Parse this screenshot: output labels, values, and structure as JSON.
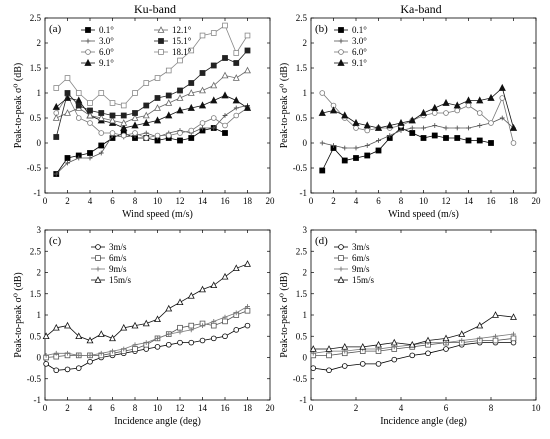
{
  "titles": {
    "left": "Ku-band",
    "right": "Ka-band"
  },
  "chart_data": [
    {
      "type": "line",
      "panel_label": "(a)",
      "xlabel": "Wind speed (m/s)",
      "ylabel": "Peak-to-peak σ⁰ (dB)",
      "xlim": [
        0,
        20
      ],
      "ylim": [
        -1,
        2.5
      ],
      "xticks": [
        "0",
        "2",
        "4",
        "6",
        "8",
        "10",
        "12",
        "14",
        "16",
        "18",
        "20"
      ],
      "yticks": [
        "-1",
        "-0.5",
        "0",
        "0.5",
        "1",
        "1.5",
        "2",
        "2.5"
      ],
      "legend_columns": 2,
      "series": [
        {
          "name": "0.1°",
          "marker": "filled-square",
          "x": [
            1,
            2,
            3,
            4,
            5,
            6,
            7,
            8,
            9,
            10,
            11,
            12,
            13,
            14,
            15,
            16
          ],
          "y": [
            -0.62,
            -0.3,
            -0.25,
            -0.2,
            -0.05,
            0.1,
            0.2,
            0.1,
            0.1,
            0.05,
            0.1,
            0.05,
            0.1,
            0.25,
            0.3,
            0.2
          ]
        },
        {
          "name": "3.0°",
          "marker": "plus",
          "x": [
            1,
            2,
            3,
            4,
            5,
            6,
            7,
            8,
            9,
            10,
            11,
            12,
            13,
            14,
            15,
            16,
            17,
            18
          ],
          "y": [
            -0.62,
            -0.4,
            -0.3,
            -0.3,
            -0.2,
            0.15,
            0.12,
            0.15,
            0.2,
            0.12,
            0.2,
            0.25,
            0.2,
            0.3,
            0.3,
            0.55,
            0.7,
            0.75
          ]
        },
        {
          "name": "6.0°",
          "marker": "open-circle",
          "x": [
            1,
            2,
            3,
            4,
            5,
            6,
            7,
            8,
            9,
            10,
            11,
            12,
            13,
            14,
            15,
            16,
            17,
            18
          ],
          "y": [
            0.6,
            0.95,
            0.5,
            0.4,
            0.2,
            0.2,
            0.15,
            0.2,
            0.1,
            0.15,
            0.15,
            0.2,
            0.25,
            0.4,
            0.5,
            0.35,
            0.55,
            0.7
          ]
        },
        {
          "name": "9.1°",
          "marker": "filled-triangle",
          "x": [
            1,
            2,
            3,
            4,
            5,
            6,
            7,
            8,
            9,
            10,
            11,
            12,
            13,
            14,
            15,
            16,
            17,
            18
          ],
          "y": [
            0.72,
            0.9,
            0.85,
            0.55,
            0.45,
            0.4,
            0.3,
            0.35,
            0.4,
            0.45,
            0.55,
            0.65,
            0.7,
            0.75,
            0.85,
            0.95,
            0.85,
            0.7
          ]
        },
        {
          "name": "12.1°",
          "marker": "open-triangle",
          "x": [
            1,
            2,
            3,
            4,
            5,
            6,
            7,
            8,
            9,
            10,
            11,
            12,
            13,
            14,
            15,
            16,
            17,
            18
          ],
          "y": [
            0.5,
            0.6,
            0.7,
            0.55,
            0.5,
            0.45,
            0.4,
            0.5,
            0.55,
            0.7,
            0.8,
            0.9,
            1.0,
            1.05,
            1.15,
            1.35,
            1.3,
            1.45
          ]
        },
        {
          "name": "15.1°",
          "marker": "filled-square",
          "x": [
            1,
            2,
            3,
            4,
            5,
            6,
            7,
            8,
            9,
            10,
            11,
            12,
            13,
            14,
            15,
            16,
            17,
            18
          ],
          "y": [
            0.12,
            1.0,
            0.75,
            0.65,
            0.6,
            0.55,
            0.55,
            0.6,
            0.75,
            0.9,
            0.95,
            1.05,
            1.2,
            1.4,
            1.55,
            1.7,
            1.6,
            1.85
          ]
        },
        {
          "name": "18.1°",
          "marker": "open-square",
          "x": [
            1,
            2,
            3,
            4,
            5,
            6,
            7,
            8,
            9,
            10,
            11,
            12,
            13,
            14,
            15,
            16,
            17,
            18
          ],
          "y": [
            1.1,
            1.3,
            1.0,
            0.8,
            1.0,
            0.8,
            0.75,
            1.0,
            1.2,
            1.3,
            1.45,
            1.65,
            1.85,
            2.15,
            2.2,
            2.35,
            1.8,
            2.15
          ]
        }
      ]
    },
    {
      "type": "line",
      "panel_label": "(b)",
      "xlabel": "Wind speed (m/s)",
      "ylabel": "Peak-to-peak σ⁰ (dB)",
      "xlim": [
        0,
        20
      ],
      "ylim": [
        -1,
        2.5
      ],
      "xticks": [
        "0",
        "2",
        "4",
        "6",
        "8",
        "10",
        "12",
        "14",
        "16",
        "18",
        "20"
      ],
      "yticks": [
        "-1",
        "-0.5",
        "0",
        "0.5",
        "1",
        "1.5",
        "2",
        "2.5"
      ],
      "legend_columns": 1,
      "series": [
        {
          "name": "0.1°",
          "marker": "filled-square",
          "x": [
            1,
            2,
            3,
            4,
            5,
            6,
            7,
            8,
            9,
            10,
            11,
            12,
            13,
            14,
            15,
            16
          ],
          "y": [
            -0.55,
            -0.1,
            -0.35,
            -0.3,
            -0.25,
            -0.15,
            0.1,
            0.3,
            0.2,
            0.1,
            0.15,
            0.1,
            0.1,
            0.05,
            0.05,
            0.0
          ]
        },
        {
          "name": "3.0°",
          "marker": "plus",
          "x": [
            1,
            2,
            3,
            4,
            5,
            6,
            7,
            8,
            9,
            10,
            11,
            12,
            13,
            14,
            15,
            16,
            17,
            18
          ],
          "y": [
            0.0,
            -0.05,
            -0.1,
            -0.1,
            -0.05,
            0.05,
            0.15,
            0.25,
            0.3,
            0.3,
            0.35,
            0.3,
            0.3,
            0.3,
            0.35,
            0.4,
            0.5,
            0.3
          ]
        },
        {
          "name": "6.0°",
          "marker": "open-circle",
          "x": [
            1,
            2,
            3,
            4,
            5,
            6,
            7,
            8,
            9,
            10,
            11,
            12,
            13,
            14,
            15,
            16,
            17,
            18
          ],
          "y": [
            1.0,
            0.75,
            0.5,
            0.3,
            0.25,
            0.3,
            0.3,
            0.35,
            0.45,
            0.55,
            0.6,
            0.6,
            0.65,
            0.75,
            0.6,
            0.4,
            0.9,
            0.0
          ]
        },
        {
          "name": "9.1°",
          "marker": "filled-triangle",
          "x": [
            1,
            2,
            3,
            4,
            5,
            6,
            7,
            8,
            9,
            10,
            11,
            12,
            13,
            14,
            15,
            16,
            17,
            18
          ],
          "y": [
            0.6,
            0.65,
            0.55,
            0.4,
            0.35,
            0.3,
            0.35,
            0.4,
            0.45,
            0.6,
            0.7,
            0.8,
            0.75,
            0.85,
            0.85,
            0.9,
            1.1,
            0.3
          ]
        }
      ]
    },
    {
      "type": "line",
      "panel_label": "(c)",
      "xlabel": "Incidence angle (deg)",
      "ylabel": "Peak-to-peak σ⁰ (dB)",
      "xlim": [
        0,
        20
      ],
      "ylim": [
        -1,
        3
      ],
      "xticks": [
        "0",
        "2",
        "4",
        "6",
        "8",
        "10",
        "12",
        "14",
        "16",
        "18",
        "20"
      ],
      "yticks": [
        "-1",
        "-0.5",
        "0",
        "0.5",
        "1",
        "1.5",
        "2",
        "2.5",
        "3"
      ],
      "legend_columns": 1,
      "series": [
        {
          "name": "3m/s",
          "marker": "open-circle",
          "x": [
            0.1,
            1,
            2,
            3,
            4,
            5,
            6,
            7,
            8,
            9,
            10,
            11,
            12,
            13,
            14,
            15,
            16,
            17,
            18
          ],
          "y": [
            -0.15,
            -0.3,
            -0.28,
            -0.25,
            -0.1,
            0.0,
            0.05,
            0.1,
            0.15,
            0.2,
            0.25,
            0.3,
            0.35,
            0.35,
            0.4,
            0.45,
            0.5,
            0.65,
            0.75
          ]
        },
        {
          "name": "6m/s",
          "marker": "open-square",
          "x": [
            0.1,
            1,
            2,
            3,
            4,
            5,
            6,
            7,
            8,
            9,
            10,
            11,
            12,
            13,
            14,
            15,
            16,
            17,
            18
          ],
          "y": [
            0.0,
            0.02,
            0.05,
            0.05,
            0.05,
            0.05,
            0.1,
            0.15,
            0.2,
            0.3,
            0.45,
            0.55,
            0.7,
            0.75,
            0.8,
            0.75,
            0.85,
            1.0,
            1.1
          ]
        },
        {
          "name": "9m/s",
          "marker": "plus",
          "x": [
            0.1,
            1,
            2,
            3,
            4,
            5,
            6,
            7,
            8,
            9,
            10,
            11,
            12,
            13,
            14,
            15,
            16,
            17,
            18
          ],
          "y": [
            0.05,
            0.1,
            0.1,
            0.05,
            0.05,
            0.1,
            0.15,
            0.2,
            0.3,
            0.35,
            0.45,
            0.55,
            0.6,
            0.65,
            0.75,
            0.85,
            0.95,
            1.05,
            1.2
          ]
        },
        {
          "name": "15m/s",
          "marker": "open-triangle",
          "x": [
            0.1,
            1,
            2,
            3,
            4,
            5,
            6,
            7,
            8,
            9,
            10,
            11,
            12,
            13,
            14,
            15,
            16,
            17,
            18
          ],
          "y": [
            0.5,
            0.7,
            0.75,
            0.5,
            0.4,
            0.55,
            0.45,
            0.7,
            0.75,
            0.8,
            0.9,
            1.15,
            1.3,
            1.45,
            1.6,
            1.7,
            1.9,
            2.1,
            2.2
          ]
        }
      ]
    },
    {
      "type": "line",
      "panel_label": "(d)",
      "xlabel": "Incidence angle (deg)",
      "ylabel": "Peak-to-peak σ⁰ (dB)",
      "xlim": [
        0,
        10
      ],
      "ylim": [
        -1,
        3
      ],
      "xticks": [
        "0",
        "2",
        "4",
        "6",
        "8",
        "10"
      ],
      "yticks": [
        "-1",
        "-0.5",
        "0",
        "0.5",
        "1",
        "1.5",
        "2",
        "2.5",
        "3"
      ],
      "legend_columns": 1,
      "series": [
        {
          "name": "3m/s",
          "marker": "open-circle",
          "x": [
            0.1,
            0.8,
            1.5,
            2.3,
            3.0,
            3.7,
            4.5,
            5.2,
            6.0,
            6.7,
            7.5,
            8.2,
            9.0
          ],
          "y": [
            -0.25,
            -0.3,
            -0.2,
            -0.15,
            -0.15,
            -0.05,
            0.05,
            0.1,
            0.2,
            0.3,
            0.35,
            0.35,
            0.35
          ]
        },
        {
          "name": "6m/s",
          "marker": "open-square",
          "x": [
            0.1,
            0.8,
            1.5,
            2.3,
            3.0,
            3.7,
            4.5,
            5.2,
            6.0,
            6.7,
            7.5,
            8.2,
            9.0
          ],
          "y": [
            0.05,
            0.05,
            0.1,
            0.15,
            0.15,
            0.2,
            0.25,
            0.3,
            0.35,
            0.35,
            0.4,
            0.4,
            0.45
          ]
        },
        {
          "name": "9m/s",
          "marker": "plus",
          "x": [
            0.1,
            0.8,
            1.5,
            2.3,
            3.0,
            3.7,
            4.5,
            5.2,
            6.0,
            6.7,
            7.5,
            8.2,
            9.0
          ],
          "y": [
            0.1,
            0.15,
            0.15,
            0.2,
            0.2,
            0.25,
            0.3,
            0.35,
            0.35,
            0.4,
            0.45,
            0.5,
            0.55
          ]
        },
        {
          "name": "15m/s",
          "marker": "open-triangle",
          "x": [
            0.1,
            0.8,
            1.5,
            2.3,
            3.0,
            3.7,
            4.5,
            5.2,
            6.0,
            6.7,
            7.5,
            8.2,
            9.0
          ],
          "y": [
            0.2,
            0.2,
            0.25,
            0.25,
            0.3,
            0.35,
            0.3,
            0.4,
            0.45,
            0.55,
            0.75,
            1.0,
            0.95
          ]
        }
      ]
    }
  ]
}
